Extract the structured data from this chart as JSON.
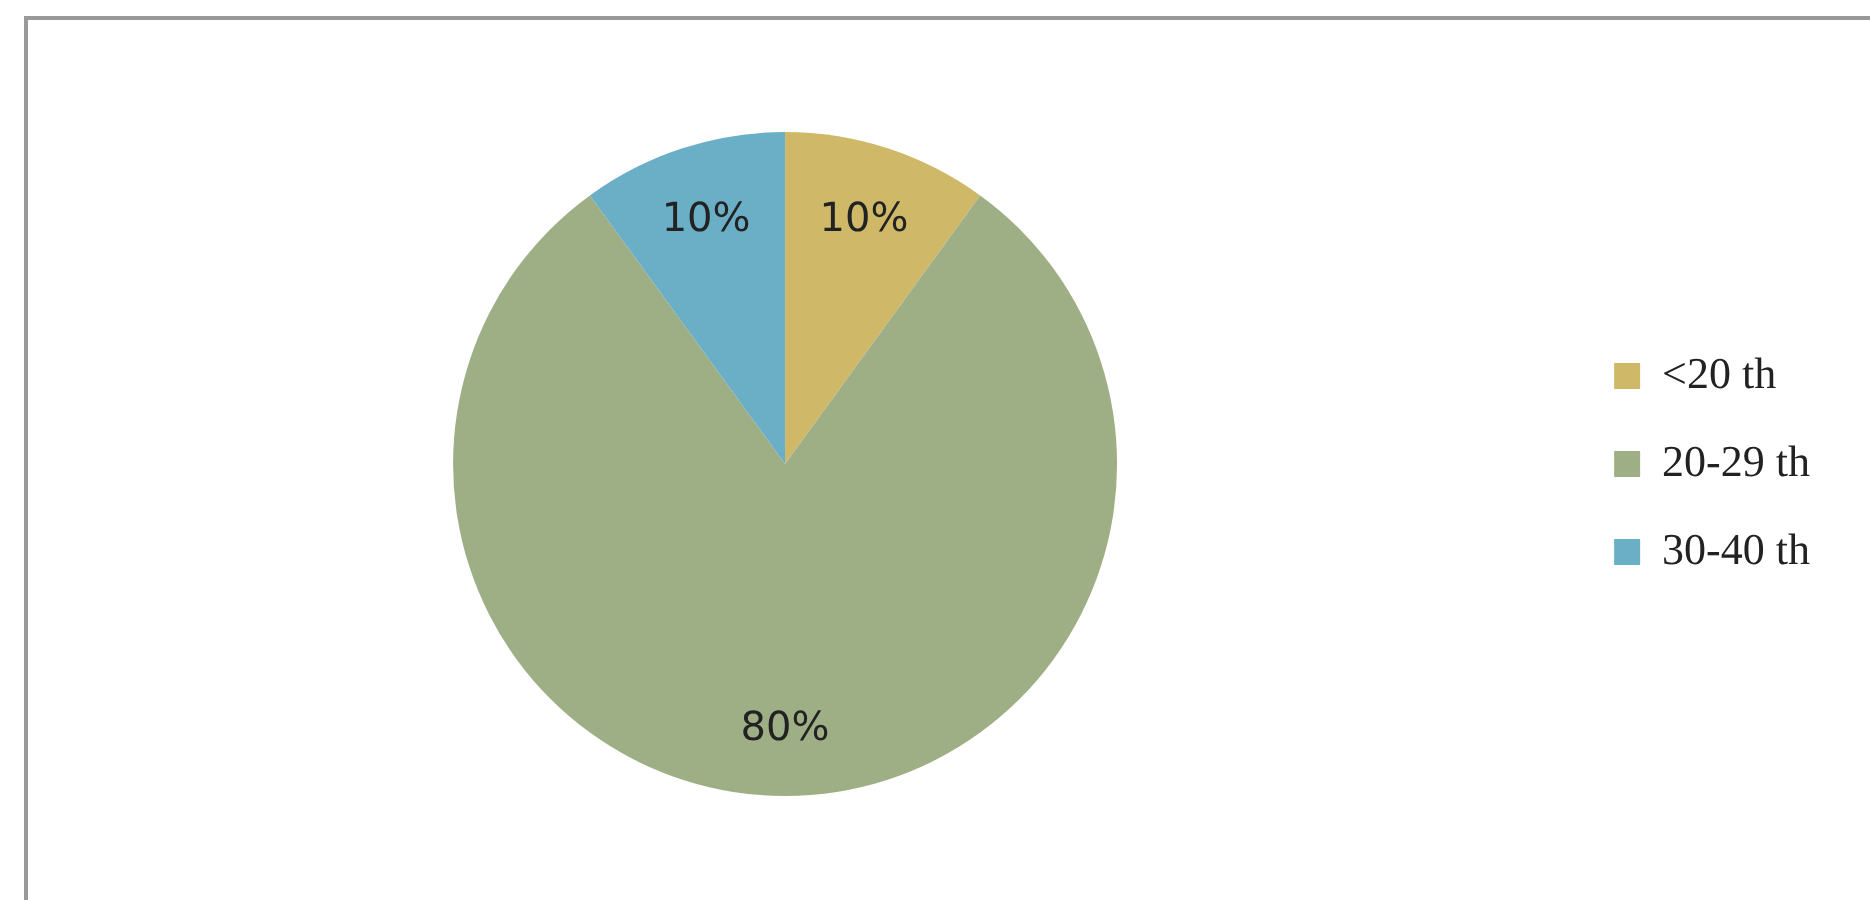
{
  "chart_data": {
    "type": "pie",
    "categories": [
      "<20 th",
      "20-29 th",
      "30-40 th"
    ],
    "values": [
      10,
      80,
      10
    ],
    "colors": [
      "#cfb968",
      "#9faf85",
      "#6aafc6"
    ],
    "value_labels": [
      "10%",
      "80%",
      "10%"
    ],
    "legend": "right"
  }
}
